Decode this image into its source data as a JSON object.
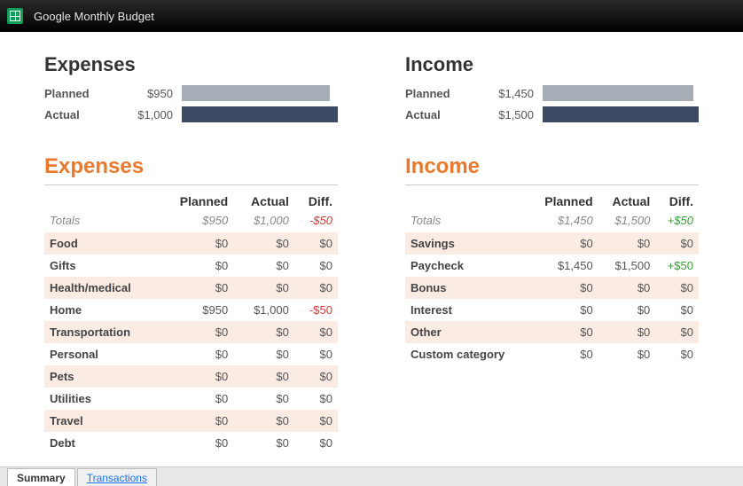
{
  "window": {
    "title": "Google Monthly Budget"
  },
  "colors": {
    "bar_planned": "#a7adb7",
    "bar_actual": "#3c4a63",
    "accent": "#e8792d",
    "neg": "#d23c3c",
    "pos": "#3a9a3a",
    "stripe": "#fbece3"
  },
  "summary": {
    "expenses": {
      "title": "Expenses",
      "planned_label": "Planned",
      "planned_value": "$950",
      "planned_pct": 95,
      "actual_label": "Actual",
      "actual_value": "$1,000",
      "actual_pct": 100
    },
    "income": {
      "title": "Income",
      "planned_label": "Planned",
      "planned_value": "$1,450",
      "planned_pct": 96.7,
      "actual_label": "Actual",
      "actual_value": "$1,500",
      "actual_pct": 100
    }
  },
  "headers": {
    "planned": "Planned",
    "actual": "Actual",
    "diff": "Diff.",
    "totals": "Totals"
  },
  "expenses": {
    "title": "Expenses",
    "totals": {
      "planned": "$950",
      "actual": "$1,000",
      "diff": "-$50",
      "diff_sign": "neg"
    },
    "rows": [
      {
        "name": "Food",
        "planned": "$0",
        "actual": "$0",
        "diff": "$0",
        "diff_sign": "zero"
      },
      {
        "name": "Gifts",
        "planned": "$0",
        "actual": "$0",
        "diff": "$0",
        "diff_sign": "zero"
      },
      {
        "name": "Health/medical",
        "planned": "$0",
        "actual": "$0",
        "diff": "$0",
        "diff_sign": "zero"
      },
      {
        "name": "Home",
        "planned": "$950",
        "actual": "$1,000",
        "diff": "-$50",
        "diff_sign": "neg"
      },
      {
        "name": "Transportation",
        "planned": "$0",
        "actual": "$0",
        "diff": "$0",
        "diff_sign": "zero"
      },
      {
        "name": "Personal",
        "planned": "$0",
        "actual": "$0",
        "diff": "$0",
        "diff_sign": "zero"
      },
      {
        "name": "Pets",
        "planned": "$0",
        "actual": "$0",
        "diff": "$0",
        "diff_sign": "zero"
      },
      {
        "name": "Utilities",
        "planned": "$0",
        "actual": "$0",
        "diff": "$0",
        "diff_sign": "zero"
      },
      {
        "name": "Travel",
        "planned": "$0",
        "actual": "$0",
        "diff": "$0",
        "diff_sign": "zero"
      },
      {
        "name": "Debt",
        "planned": "$0",
        "actual": "$0",
        "diff": "$0",
        "diff_sign": "zero"
      }
    ]
  },
  "income": {
    "title": "Income",
    "totals": {
      "planned": "$1,450",
      "actual": "$1,500",
      "diff": "+$50",
      "diff_sign": "pos"
    },
    "rows": [
      {
        "name": "Savings",
        "planned": "$0",
        "actual": "$0",
        "diff": "$0",
        "diff_sign": "zero"
      },
      {
        "name": "Paycheck",
        "planned": "$1,450",
        "actual": "$1,500",
        "diff": "+$50",
        "diff_sign": "pos"
      },
      {
        "name": "Bonus",
        "planned": "$0",
        "actual": "$0",
        "diff": "$0",
        "diff_sign": "zero"
      },
      {
        "name": "Interest",
        "planned": "$0",
        "actual": "$0",
        "diff": "$0",
        "diff_sign": "zero"
      },
      {
        "name": "Other",
        "planned": "$0",
        "actual": "$0",
        "diff": "$0",
        "diff_sign": "zero"
      },
      {
        "name": "Custom category",
        "planned": "$0",
        "actual": "$0",
        "diff": "$0",
        "diff_sign": "zero"
      }
    ]
  },
  "tabs": {
    "summary": "Summary",
    "transactions": "Transactions"
  }
}
